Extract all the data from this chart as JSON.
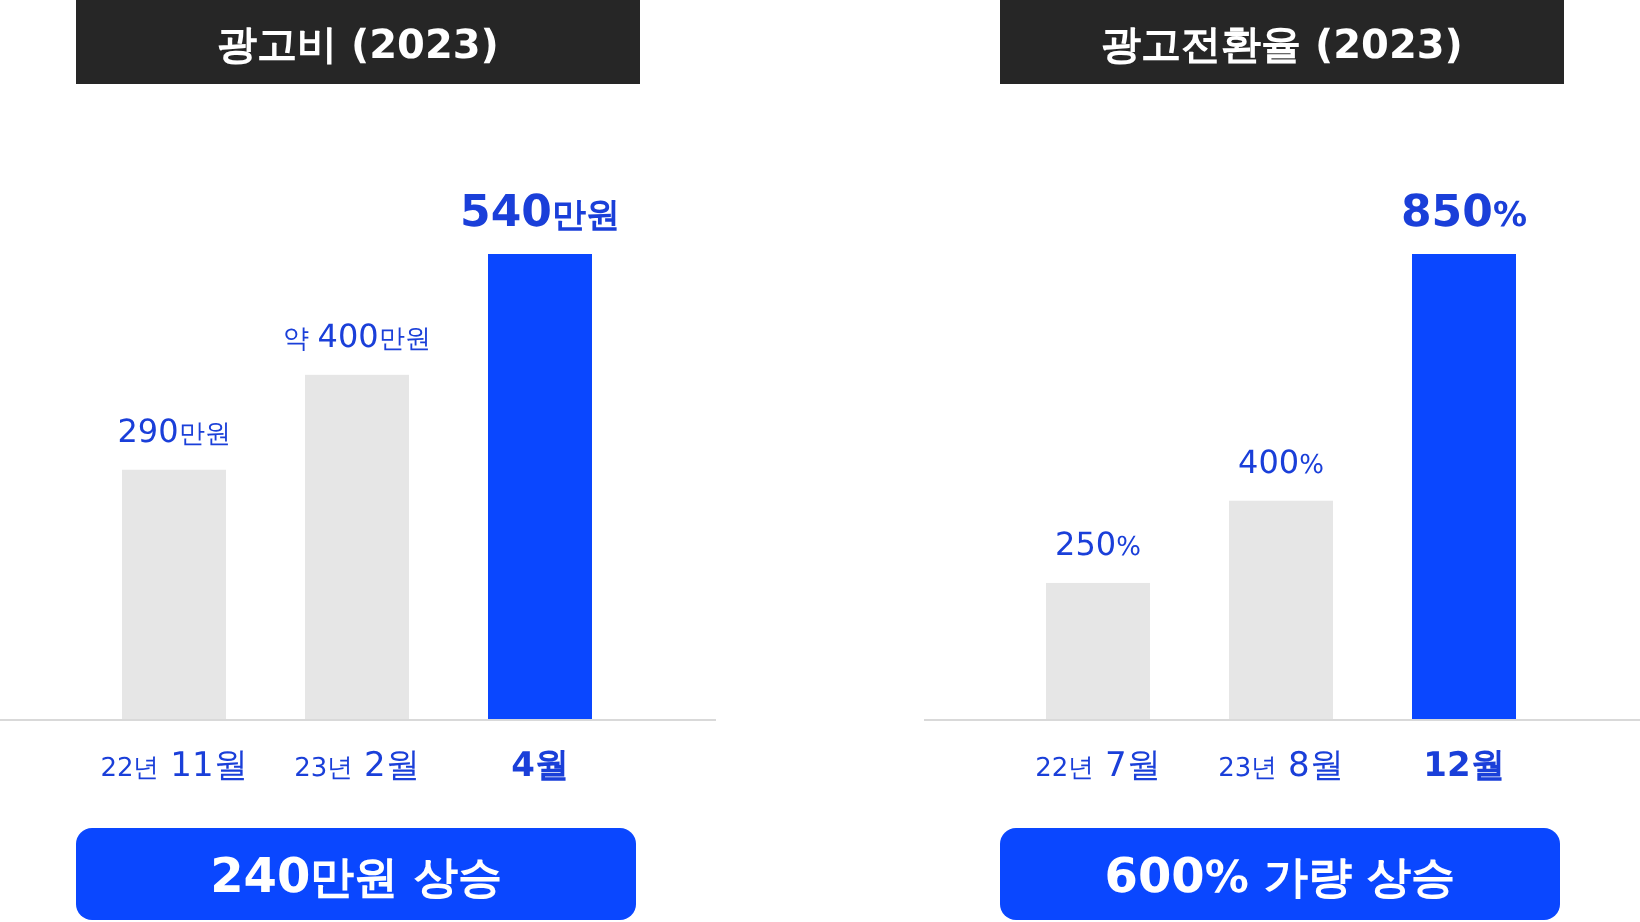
{
  "chart_data": [
    {
      "type": "bar",
      "title": "광고비 (2023)",
      "categories": [
        "22년 11월",
        "23년 2월",
        "4월"
      ],
      "values": [
        290,
        400,
        540
      ],
      "colors": [
        "#e6e6e6",
        "#e6e6e6",
        "#0a47ff"
      ],
      "value_labels": [
        "290만원",
        "약 400만원",
        "540만원"
      ],
      "annotations": [
        "240만원 상승"
      ]
    },
    {
      "type": "bar",
      "title": "광고전환율 (2023)",
      "categories": [
        "22년 7월",
        "23년 8월",
        "12월"
      ],
      "values": [
        250,
        400,
        850
      ],
      "colors": [
        "#e6e6e6",
        "#e6e6e6",
        "#0a47ff"
      ],
      "value_labels": [
        "250%",
        "400%",
        "850%"
      ],
      "annotations": [
        "600% 가량 상승"
      ]
    }
  ]
}
